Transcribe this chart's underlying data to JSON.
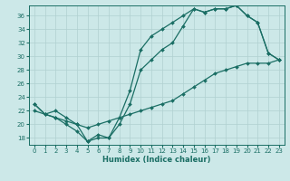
{
  "xlabel": "Humidex (Indice chaleur)",
  "ylabel": "",
  "bg_color": "#cce8e8",
  "line_color": "#1a6e64",
  "grid_color": "#b0d0d0",
  "xlim": [
    -0.5,
    23.5
  ],
  "ylim": [
    17.0,
    37.5
  ],
  "yticks": [
    18,
    20,
    22,
    24,
    26,
    28,
    30,
    32,
    34,
    36
  ],
  "xticks": [
    0,
    1,
    2,
    3,
    4,
    5,
    6,
    7,
    8,
    9,
    10,
    11,
    12,
    13,
    14,
    15,
    16,
    17,
    18,
    19,
    20,
    21,
    22,
    23
  ],
  "line1_x": [
    0,
    1,
    2,
    3,
    4,
    5,
    6,
    7,
    8,
    9,
    10,
    11,
    12,
    13,
    14,
    15,
    16,
    17,
    18,
    19,
    20,
    21,
    22,
    23
  ],
  "line1_y": [
    23,
    21.5,
    22,
    21,
    20,
    17.5,
    18.5,
    18,
    21,
    25,
    31,
    33,
    34,
    35,
    36,
    37,
    36.5,
    37,
    37,
    37.5,
    36,
    35,
    30.5,
    29.5
  ],
  "line2_x": [
    0,
    1,
    2,
    3,
    4,
    5,
    6,
    7,
    8,
    9,
    10,
    11,
    12,
    13,
    14,
    15,
    16,
    17,
    18,
    19,
    20,
    21,
    22,
    23
  ],
  "line2_y": [
    23,
    21.5,
    21,
    20,
    19,
    17.5,
    18,
    18,
    20,
    23,
    28,
    29.5,
    31,
    32,
    34.5,
    37,
    36.5,
    37,
    37,
    37.5,
    36,
    35,
    30.5,
    29.5
  ],
  "line3_x": [
    0,
    1,
    2,
    3,
    4,
    5,
    6,
    7,
    8,
    9,
    10,
    11,
    12,
    13,
    14,
    15,
    16,
    17,
    18,
    19,
    20,
    21,
    22,
    23
  ],
  "line3_y": [
    22,
    21.5,
    21,
    20.5,
    20,
    19.5,
    20,
    20.5,
    21,
    21.5,
    22,
    22.5,
    23,
    23.5,
    24.5,
    25.5,
    26.5,
    27.5,
    28,
    28.5,
    29,
    29,
    29,
    29.5
  ]
}
